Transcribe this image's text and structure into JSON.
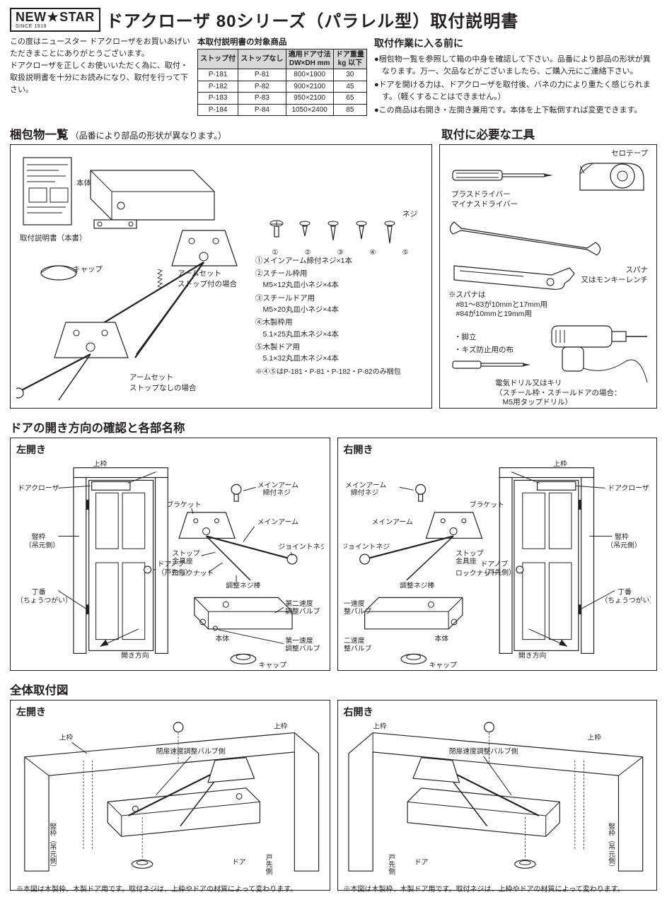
{
  "logo": {
    "brand_a": "NEW",
    "brand_b": "STAR",
    "since": "SINCE 1919",
    "star": "★"
  },
  "title": "ドアクローザ 80シリーズ（パラレル型）取付説明書",
  "intro_text": "この度はニュースター ドアクローザをお買いあげいただきまことにありがとうございます。\nドアクローザを正しくお使いいただく為に、取付・取扱説明書を十分にお読みになり、取付を行って下さい。",
  "spec_caption": "本取付説明書の対象商品",
  "spec_table": {
    "headers": [
      "ストップ付",
      "ストップなし",
      "適用ドア寸法\nDW×DH mm",
      "ドア重量\nkg 以下"
    ],
    "rows": [
      [
        "P-181",
        "P-81",
        "800×1800",
        "30"
      ],
      [
        "P-182",
        "P-82",
        "900×2100",
        "45"
      ],
      [
        "P-183",
        "P-83",
        "950×2100",
        "65"
      ],
      [
        "P-184",
        "P-84",
        "1050×2400",
        "85"
      ]
    ]
  },
  "notes_title": "取付作業に入る前に",
  "notes_items": [
    "●梱包物一覧を参照して箱の中身を確認して下さい。品番により部品の形状が異なります。万一、欠品などがございましたら、ご購入元にご連絡下さい。",
    "●ドアを開ける力は、ドアクローザを取付後、バネの力により重たく感じられます。（軽くすることはできません。）",
    "●この商品は右開き・左開き兼用です。本体を上下転倒すれば変更できます。"
  ],
  "sections": {
    "package": {
      "title": "梱包物一覧",
      "subtitle": "（品番により部品の形状が異なります。）"
    },
    "tools": {
      "title": "取付に必要な工具"
    },
    "direction": {
      "title": "ドアの開き方向の確認と各部名称"
    },
    "mounting": {
      "title": "全体取付図"
    }
  },
  "package_labels": {
    "manual": "取付説明書（本書）",
    "body": "本体",
    "cap": "キャップ",
    "arm_stop": "アームセット\nストップ付の場合",
    "arm_nostop": "アームセット\nストップなしの場合",
    "screws": "ネジ",
    "screw_nums": [
      "①",
      "②",
      "③",
      "④",
      "⑤"
    ]
  },
  "screw_list": [
    "①メインアーム締付ネジ×1本",
    "②スチール枠用\n　M5×12丸皿小ネジ×4本",
    "③スチールドア用\n　M5×20丸皿小ネジ×4本",
    "④木製枠用\n　5.1×25丸皿木ネジ×4本",
    "⑤木製ドア用\n　5.1×32丸皿木ネジ×4本"
  ],
  "screw_note": "※④⑤はP-181・P-81・P-182・P-82のみ梱包",
  "tools": {
    "tape": "セロテープ",
    "driver": "プラスドライバー\nマイナスドライバー",
    "spanner_title": "スパナ\n又はモンキーレンチ",
    "spanner_caption": "※スパナは\n　#81〜83が10mmと17mm用\n　#84が10mmと19mm用",
    "stand": "・脚立",
    "cloth": "・キズ防止用の布",
    "drill": "電気ドリル又はキリ\n（スチール枠・スチールドアの場合：\n　M5用タップドリル）"
  },
  "direction_labels": {
    "left": "左開き",
    "right": "右開き",
    "upper_frame": "上枠",
    "closer": "ドアクローザ",
    "vertical_frame": "竪枠\n（吊元側）",
    "knob": "ドアノブ\n（戸先側）",
    "hinge": "丁番\n（ちょうつがい）",
    "open_dir": "開き方向",
    "bracket": "ブラケット",
    "main_arm": "メインアーム",
    "arm_screw": "メインアーム\n締付ネジ",
    "joint": "ジョイントネジ",
    "stop_base": "ストップ\n金具座",
    "lock_nut": "ロックナット",
    "adj_bar": "調整ネジ棒",
    "body": "本体",
    "valve1": "第一速度\n調整バルブ",
    "valve2": "第二速度\n調整バルブ",
    "cap": "キャップ"
  },
  "mounting": {
    "left": "左開き",
    "right": "右開き",
    "upper_frame": "上枠",
    "valve_side": "閉扉速度調整バルブ側",
    "v_frame": "竪枠（吊元側）",
    "door": "ドア",
    "door_edge": "戸先側",
    "caption": "※本図は木製枠、木製ドア用です。取付ネジは、上枠やドアの材質によって変わります。"
  },
  "colors": {
    "ink": "#231f20",
    "panel_bg": "#ffffff",
    "table_head_bg": "#d9d9d9"
  }
}
